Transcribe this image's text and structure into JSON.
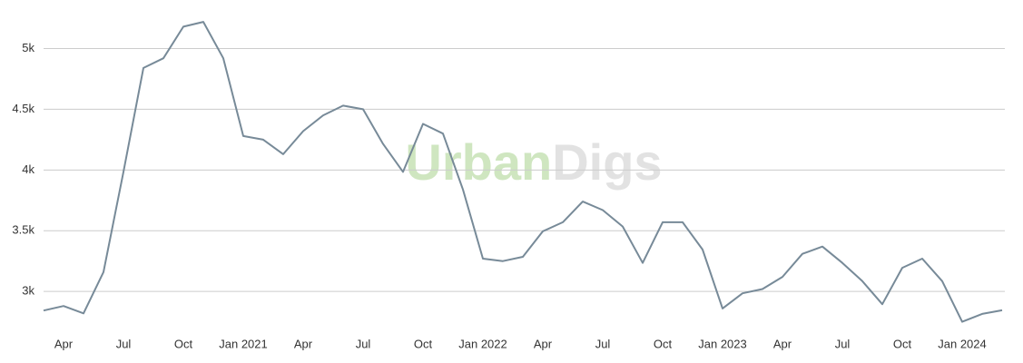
{
  "chart_data": {
    "type": "line",
    "watermark": [
      "Urban",
      "Digs"
    ],
    "x": [
      "2020-03",
      "2020-04",
      "2020-05",
      "2020-06",
      "2020-07",
      "2020-08",
      "2020-09",
      "2020-10",
      "2020-11",
      "2020-12",
      "2021-01",
      "2021-02",
      "2021-03",
      "2021-04",
      "2021-05",
      "2021-06",
      "2021-07",
      "2021-08",
      "2021-09",
      "2021-10",
      "2021-11",
      "2021-12",
      "2022-01",
      "2022-02",
      "2022-03",
      "2022-04",
      "2022-05",
      "2022-06",
      "2022-07",
      "2022-08",
      "2022-09",
      "2022-10",
      "2022-11",
      "2022-12",
      "2023-01",
      "2023-02",
      "2023-03",
      "2023-04",
      "2023-05",
      "2023-06",
      "2023-07",
      "2023-08",
      "2023-09",
      "2023-10",
      "2023-11",
      "2023-12",
      "2024-01",
      "2024-02",
      "2024-03"
    ],
    "series": [
      {
        "color": "#778a98",
        "values": [
          2843,
          2880,
          2820,
          3160,
          3985,
          4840,
          4920,
          5180,
          5220,
          4920,
          4280,
          4250,
          4130,
          4320,
          4450,
          4530,
          4500,
          4215,
          3985,
          4380,
          4300,
          3840,
          3270,
          3250,
          3285,
          3495,
          3570,
          3740,
          3670,
          3535,
          3235,
          3570,
          3570,
          3345,
          2860,
          2985,
          3020,
          3120,
          3310,
          3370,
          3235,
          3085,
          2895,
          3195,
          3270,
          3085,
          2750,
          2815,
          2845
        ]
      }
    ],
    "xlim": [
      "2020-03",
      "2024-03"
    ],
    "xticks": [
      {
        "value": "2020-04",
        "label": "Apr"
      },
      {
        "value": "2020-07",
        "label": "Jul"
      },
      {
        "value": "2020-10",
        "label": "Oct"
      },
      {
        "value": "2021-01",
        "label": "Jan 2021"
      },
      {
        "value": "2021-04",
        "label": "Apr"
      },
      {
        "value": "2021-07",
        "label": "Jul"
      },
      {
        "value": "2021-10",
        "label": "Oct"
      },
      {
        "value": "2022-01",
        "label": "Jan 2022"
      },
      {
        "value": "2022-04",
        "label": "Apr"
      },
      {
        "value": "2022-07",
        "label": "Jul"
      },
      {
        "value": "2022-10",
        "label": "Oct"
      },
      {
        "value": "2023-01",
        "label": "Jan 2023"
      },
      {
        "value": "2023-04",
        "label": "Apr"
      },
      {
        "value": "2023-07",
        "label": "Jul"
      },
      {
        "value": "2023-10",
        "label": "Oct"
      },
      {
        "value": "2024-01",
        "label": "Jan 2024"
      }
    ],
    "ylim": [
      2650,
      5400
    ],
    "yticks": [
      {
        "value": 3000,
        "label": "3k"
      },
      {
        "value": 3500,
        "label": "3.5k"
      },
      {
        "value": 4000,
        "label": "4k"
      },
      {
        "value": 4500,
        "label": "4.5k"
      },
      {
        "value": 5000,
        "label": "5k"
      }
    ],
    "grid": true
  }
}
